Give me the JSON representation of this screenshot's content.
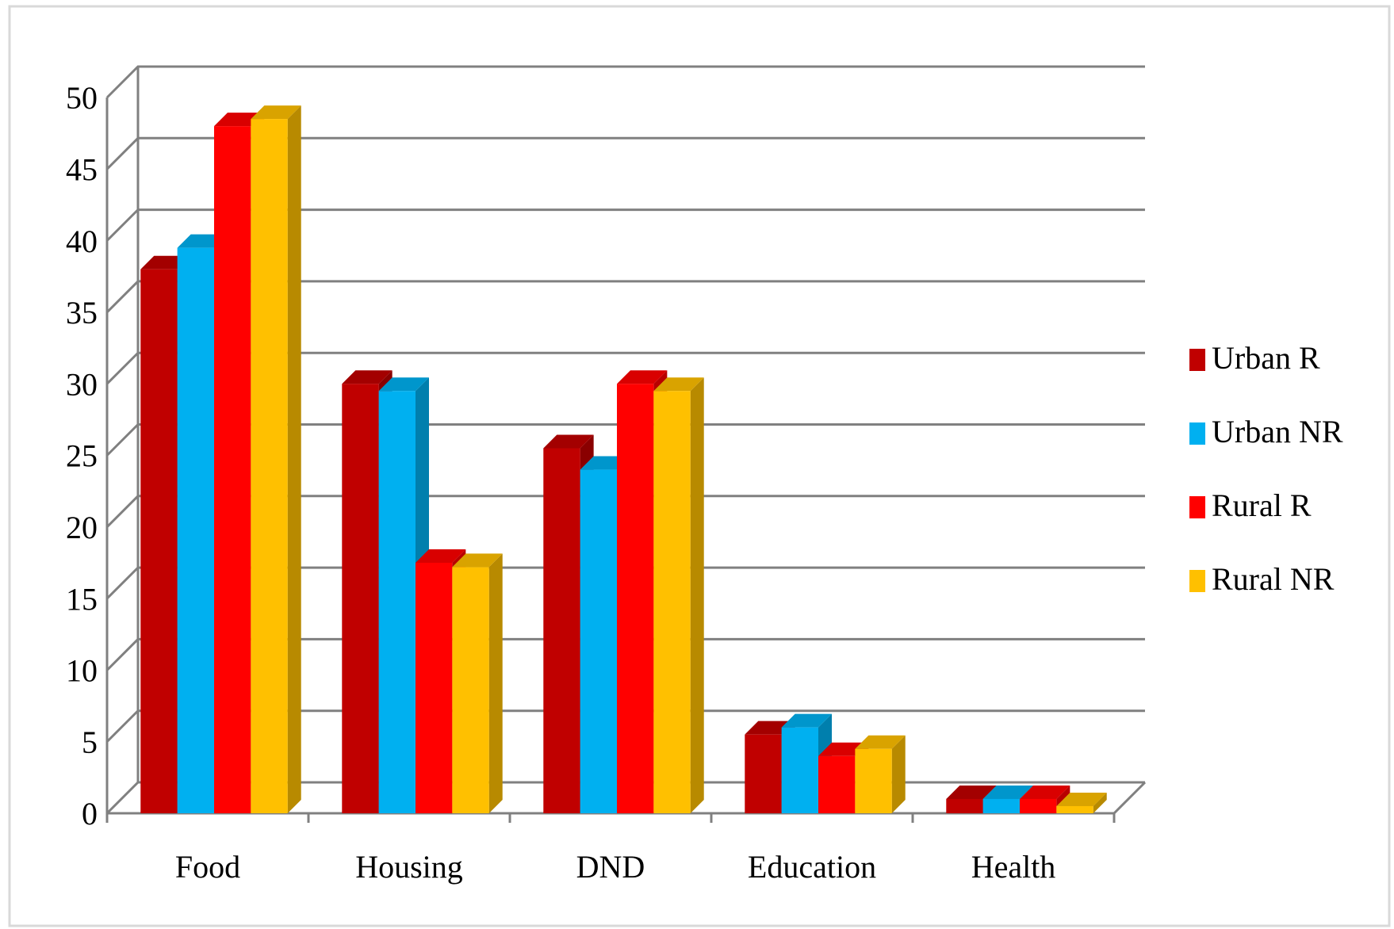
{
  "chart_data": {
    "type": "bar3d",
    "categories": [
      "Food",
      "Housing",
      "DND",
      "Education",
      "Health"
    ],
    "series": [
      {
        "name": "Urban R",
        "color": "#c00000",
        "values": [
          38,
          30,
          25.5,
          5.5,
          1
        ]
      },
      {
        "name": "Urban NR",
        "color": "#00b0f0",
        "values": [
          39.5,
          29.5,
          24,
          6,
          1
        ]
      },
      {
        "name": "Rural R",
        "color": "#ff0000",
        "values": [
          48,
          17.5,
          30,
          4,
          1
        ]
      },
      {
        "name": "Rural NR",
        "color": "#ffc000",
        "values": [
          48.5,
          17.2,
          29.5,
          4.5,
          0.5
        ]
      }
    ],
    "ylim": [
      0,
      50
    ],
    "yticks": [
      0,
      5,
      10,
      15,
      20,
      25,
      30,
      35,
      40,
      45,
      50
    ],
    "grid": true,
    "legend": "right"
  }
}
